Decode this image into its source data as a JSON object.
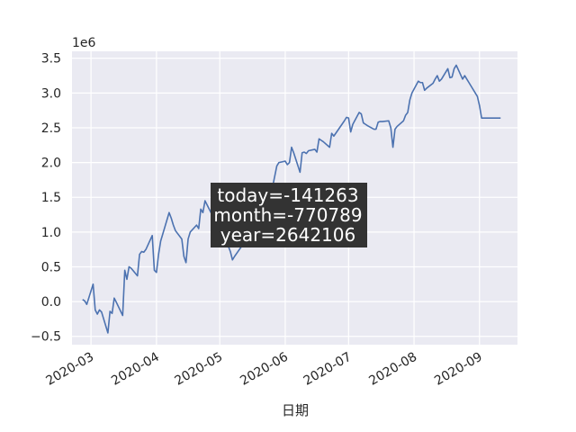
{
  "chart_data": {
    "type": "line",
    "title": "",
    "xlabel": "日期",
    "ylabel": "",
    "y_scale_label": "1e6",
    "y_scale": 1000000,
    "ylim": [
      -0.62,
      3.6
    ],
    "xlim": [
      "2020-02-21",
      "2020-09-19"
    ],
    "grid": true,
    "style": "seaborn-darkgrid",
    "line_color": "#4c72b0",
    "background_color": "#eaeaf2",
    "y_ticks": [
      -0.5,
      0.0,
      0.5,
      1.0,
      1.5,
      2.0,
      2.5,
      3.0,
      3.5
    ],
    "y_tick_labels": [
      "−0.5",
      "0.0",
      "0.5",
      "1.0",
      "1.5",
      "2.0",
      "2.5",
      "3.0",
      "3.5"
    ],
    "x_ticks": [
      "2020-03-01",
      "2020-04-01",
      "2020-05-01",
      "2020-06-01",
      "2020-07-01",
      "2020-08-01",
      "2020-09-01"
    ],
    "x_tick_labels": [
      "2020-03",
      "2020-04",
      "2020-05",
      "2020-06",
      "2020-07",
      "2020-08",
      "2020-09"
    ],
    "annotation": {
      "lines": [
        "today=-141263",
        "month=-770789",
        "year=2642106"
      ],
      "box_color": "#333333"
    },
    "series": [
      {
        "x": [
          "2020-02-26",
          "2020-02-27",
          "2020-02-28",
          "2020-03-02",
          "2020-03-03",
          "2020-03-04",
          "2020-03-05",
          "2020-03-06",
          "2020-03-09",
          "2020-03-10",
          "2020-03-11",
          "2020-03-12",
          "2020-03-13",
          "2020-03-16",
          "2020-03-17",
          "2020-03-18",
          "2020-03-19",
          "2020-03-20",
          "2020-03-23",
          "2020-03-24",
          "2020-03-25",
          "2020-03-26",
          "2020-03-27",
          "2020-03-30",
          "2020-03-31",
          "2020-04-01",
          "2020-04-02",
          "2020-04-03",
          "2020-04-07",
          "2020-04-08",
          "2020-04-09",
          "2020-04-10",
          "2020-04-13",
          "2020-04-14",
          "2020-04-15",
          "2020-04-16",
          "2020-04-17",
          "2020-04-20",
          "2020-04-21",
          "2020-04-22",
          "2020-04-23",
          "2020-04-24",
          "2020-04-27",
          "2020-04-28",
          "2020-04-29",
          "2020-04-30",
          "2020-05-06",
          "2020-05-07",
          "2020-05-08",
          "2020-05-11",
          "2020-05-12",
          "2020-05-13",
          "2020-05-14",
          "2020-05-15",
          "2020-05-18",
          "2020-05-19",
          "2020-05-20",
          "2020-05-21",
          "2020-05-22",
          "2020-05-25",
          "2020-05-26",
          "2020-05-27",
          "2020-05-28",
          "2020-05-29",
          "2020-06-01",
          "2020-06-02",
          "2020-06-03",
          "2020-06-04",
          "2020-06-05",
          "2020-06-08",
          "2020-06-09",
          "2020-06-10",
          "2020-06-11",
          "2020-06-12",
          "2020-06-15",
          "2020-06-16",
          "2020-06-17",
          "2020-06-18",
          "2020-06-19",
          "2020-06-22",
          "2020-06-23",
          "2020-06-24",
          "2020-06-29",
          "2020-06-30",
          "2020-07-01",
          "2020-07-02",
          "2020-07-03",
          "2020-07-06",
          "2020-07-07",
          "2020-07-08",
          "2020-07-09",
          "2020-07-10",
          "2020-07-13",
          "2020-07-14",
          "2020-07-15",
          "2020-07-16",
          "2020-07-17",
          "2020-07-20",
          "2020-07-21",
          "2020-07-22",
          "2020-07-23",
          "2020-07-24",
          "2020-07-27",
          "2020-07-28",
          "2020-07-29",
          "2020-07-30",
          "2020-07-31",
          "2020-08-03",
          "2020-08-04",
          "2020-08-05",
          "2020-08-06",
          "2020-08-07",
          "2020-08-10",
          "2020-08-11",
          "2020-08-12",
          "2020-08-13",
          "2020-08-14",
          "2020-08-17",
          "2020-08-18",
          "2020-08-19",
          "2020-08-20",
          "2020-08-21",
          "2020-08-24",
          "2020-08-25",
          "2020-08-26",
          "2020-08-27",
          "2020-08-28",
          "2020-08-31",
          "2020-09-01",
          "2020-09-02",
          "2020-09-03",
          "2020-09-04",
          "2020-09-07",
          "2020-09-08",
          "2020-09-09",
          "2020-09-10",
          "2020-09-11"
        ],
        "values": [
          0.03,
          0.01,
          -0.04,
          0.25,
          -0.12,
          -0.18,
          -0.12,
          -0.15,
          -0.45,
          -0.14,
          -0.17,
          0.05,
          -0.01,
          -0.2,
          0.45,
          0.32,
          0.5,
          0.48,
          0.37,
          0.68,
          0.72,
          0.71,
          0.75,
          0.95,
          0.45,
          0.42,
          0.68,
          0.87,
          1.28,
          1.2,
          1.1,
          1.02,
          0.9,
          0.65,
          0.56,
          0.9,
          1.0,
          1.1,
          1.05,
          1.33,
          1.28,
          1.45,
          1.27,
          1.4,
          1.1,
          1.2,
          0.72,
          0.6,
          0.65,
          0.78,
          0.82,
          0.84,
          0.8,
          0.9,
          1.1,
          1.44,
          1.35,
          1.42,
          1.5,
          1.55,
          1.65,
          1.8,
          1.95,
          2.0,
          2.02,
          1.97,
          2.0,
          2.22,
          2.14,
          1.86,
          2.14,
          2.15,
          2.13,
          2.17,
          2.19,
          2.15,
          2.34,
          2.32,
          2.3,
          2.22,
          2.42,
          2.38,
          2.6,
          2.65,
          2.64,
          2.44,
          2.55,
          2.72,
          2.7,
          2.57,
          2.55,
          2.53,
          2.48,
          2.48,
          2.58,
          2.59,
          2.59,
          2.6,
          2.5,
          2.22,
          2.48,
          2.52,
          2.6,
          2.68,
          2.72,
          2.9,
          3.0,
          3.17,
          3.15,
          3.15,
          3.04,
          3.07,
          3.14,
          3.2,
          3.25,
          3.17,
          3.2,
          3.35,
          3.22,
          3.23,
          3.35,
          3.4,
          3.2,
          3.25,
          3.2,
          3.15,
          3.1,
          2.95,
          2.82,
          2.64,
          2.64,
          2.64,
          2.64,
          2.64,
          2.64,
          2.64,
          2.64
        ]
      }
    ]
  }
}
